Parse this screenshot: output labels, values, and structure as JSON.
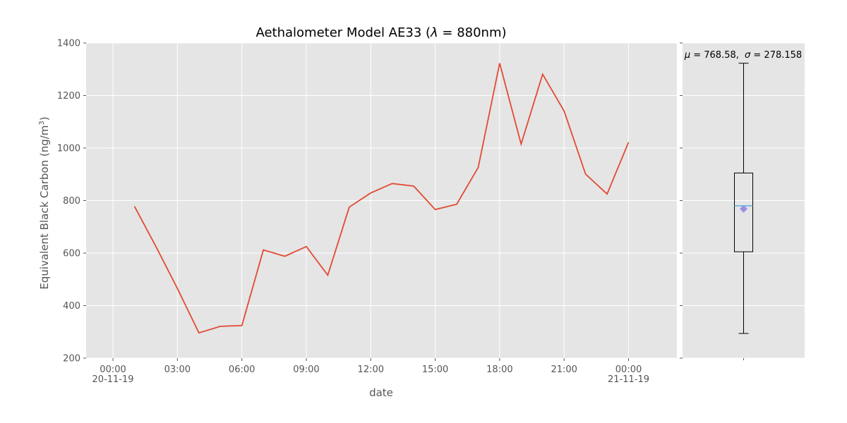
{
  "chart_data": [
    {
      "type": "line",
      "title": "Aethalometer Model AE33 (λ = 880nm)",
      "title_parts": {
        "prefix": "Aethalometer Model AE33 (",
        "symbol": "λ",
        "equals": " = 880nm)"
      },
      "xlabel": "date",
      "ylabel": "Equivalent Black Carbon (ng/m³)",
      "ylabel_parts": {
        "main": "Equivalent Black Carbon (ng/m",
        "sup": "3",
        "end": ")"
      },
      "ylim": [
        200,
        1400
      ],
      "xlim_hours": [
        -1.25,
        26.25
      ],
      "yticks": [
        200,
        400,
        600,
        800,
        1000,
        1200,
        1400
      ],
      "ytick_labels": [
        "200",
        "400",
        "600",
        "800",
        "1000",
        "1200",
        "1400"
      ],
      "xticks": [
        {
          "hour": 0,
          "label": "00:00",
          "sublabel": "20-11-19"
        },
        {
          "hour": 3,
          "label": "03:00",
          "sublabel": ""
        },
        {
          "hour": 6,
          "label": "06:00",
          "sublabel": ""
        },
        {
          "hour": 9,
          "label": "09:00",
          "sublabel": ""
        },
        {
          "hour": 12,
          "label": "12:00",
          "sublabel": ""
        },
        {
          "hour": 15,
          "label": "15:00",
          "sublabel": ""
        },
        {
          "hour": 18,
          "label": "18:00",
          "sublabel": ""
        },
        {
          "hour": 21,
          "label": "21:00",
          "sublabel": ""
        },
        {
          "hour": 24,
          "label": "00:00",
          "sublabel": "21-11-19"
        }
      ],
      "grid": true,
      "series": [
        {
          "color": "#E24A33",
          "x_hours": [
            1,
            2,
            3,
            4,
            5,
            6,
            7,
            8,
            9,
            10,
            11,
            12,
            13,
            14,
            15,
            16,
            17,
            18,
            19,
            20,
            21,
            22,
            23,
            24
          ],
          "values": [
            778,
            625,
            465,
            296,
            321,
            324,
            612,
            588,
            625,
            516,
            775,
            829,
            865,
            855,
            766,
            786,
            926,
            1323,
            1015,
            1281,
            1141,
            901,
            825,
            1022
          ]
        }
      ]
    },
    {
      "type": "box",
      "annotation": "μ = 768.58,  σ = 278.158",
      "annotation_parts": {
        "mu": "μ",
        "mu_value": " = 768.58, ",
        "sigma": "σ",
        "sigma_value": " = 278.158"
      },
      "ylim": [
        200,
        1400
      ],
      "grid": true,
      "min": 294,
      "q1": 605,
      "median": 780,
      "q3": 905,
      "max": 1323,
      "mean": 768.58,
      "std": 278.158,
      "box_color": "#000000",
      "median_color": "#5DADE2",
      "mean_marker_color": "#9B8FE0"
    }
  ]
}
